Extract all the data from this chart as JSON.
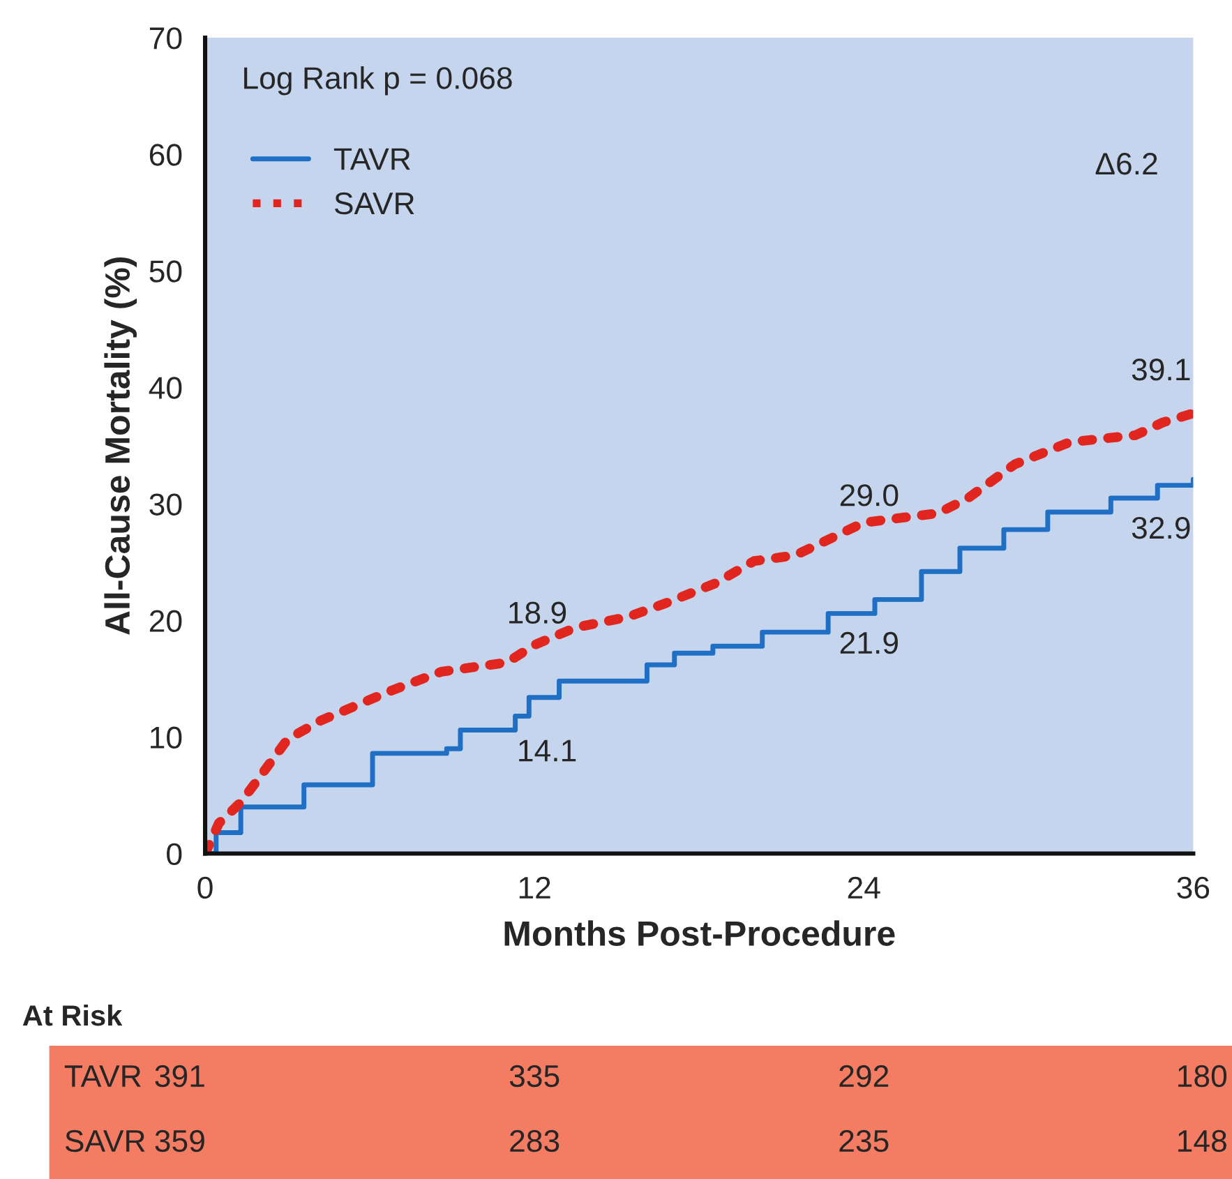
{
  "chart_data": {
    "type": "line",
    "xlabel": "Months Post-Procedure",
    "ylabel": "All-Cause Mortality (%)",
    "xlim": [
      0,
      36
    ],
    "xticks": [
      0,
      12,
      24,
      36
    ],
    "ylim": [
      0,
      70
    ],
    "yticks": [
      0,
      10,
      20,
      30,
      40,
      50,
      60,
      70
    ],
    "grid": false,
    "legend": "top left",
    "series": [
      {
        "name": "TAVR",
        "type": "step",
        "line_style": "solid",
        "color": "#1f6fc5",
        "x": [
          0,
          0.4,
          1.3,
          3.6,
          6.1,
          8.8,
          9.3,
          11.3,
          11.8,
          12.9,
          15.0,
          16.1,
          17.1,
          18.5,
          20.3,
          22.7,
          24.4,
          26.1,
          27.5,
          29.1,
          30.7,
          33.0,
          34.7,
          36
        ],
        "values": [
          0,
          1.8,
          4.0,
          5.9,
          8.6,
          9.0,
          10.6,
          11.8,
          13.4,
          14.8,
          14.8,
          16.2,
          17.2,
          17.8,
          19.0,
          20.6,
          21.8,
          24.2,
          26.2,
          27.8,
          29.3,
          30.5,
          31.6,
          32.1
        ]
      },
      {
        "name": "SAVR",
        "line_style": "dotted",
        "color": "#e0261f",
        "x": [
          0,
          0.5,
          1.3,
          2.0,
          3.0,
          4.2,
          5.6,
          6.8,
          8.6,
          11.0,
          12.0,
          13.5,
          15.4,
          16.8,
          18.6,
          20.0,
          21.5,
          22.4,
          24.0,
          26.7,
          27.8,
          29.5,
          31.5,
          33.9,
          34.9,
          35.9
        ],
        "values": [
          0,
          2.6,
          4.4,
          6.6,
          9.8,
          11.4,
          12.8,
          14.0,
          15.6,
          16.4,
          17.9,
          19.4,
          20.3,
          21.5,
          23.2,
          25.1,
          25.6,
          26.6,
          28.4,
          29.2,
          30.5,
          33.4,
          35.3,
          35.9,
          37.0,
          37.7
        ]
      }
    ],
    "annotations": [
      "Log Rank p = 0.068",
      "Δ6.2",
      "18.9",
      "14.1",
      "29.0",
      "21.9",
      "39.1",
      "32.9",
      "At Risk",
      "TAVR",
      "391",
      "335",
      "292",
      "180",
      "SAVR",
      "359",
      "283",
      "235",
      "148"
    ]
  }
}
